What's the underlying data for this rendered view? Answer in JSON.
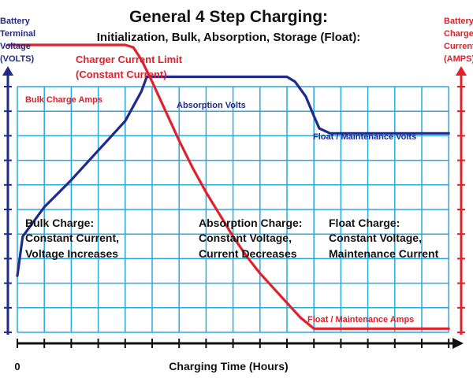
{
  "chart_data": {
    "type": "line",
    "title": "General 4 Step Charging:",
    "subtitle": "Initialization, Bulk, Absorption, Storage (Float):",
    "left_axis_label": [
      "Battery",
      "Terminal",
      "Voltage",
      "(VOLTS)"
    ],
    "right_axis_label": [
      "Battery",
      "Charge",
      "Current",
      "(AMPS)"
    ],
    "xlabel": "Charging Time (Hours)",
    "x_tick_label": "0",
    "grid": true,
    "colors": {
      "volts": "#1f2a8a",
      "amps": "#e0202a",
      "grid": "#28a8e0",
      "axis": "#111111"
    },
    "annotations": {
      "charger_limit": [
        "Charger Current Limit",
        "(Constant Current)"
      ],
      "bulk_amps": "Bulk Charge Amps",
      "absorption_volts": "Absorption Volts",
      "float_volts": "Float / Maintenance Volts",
      "float_amps": "Float / Maintenance Amps",
      "bulk_stage": [
        "Bulk Charge:",
        "Constant Current,",
        "Voltage Increases"
      ],
      "absorption_stage": [
        "Absorption Charge:",
        "Constant Voltage,",
        "Current Decreases"
      ],
      "float_stage": [
        "Float Charge:",
        "Constant Voltage,",
        "Maintenance Current"
      ]
    },
    "series": [
      {
        "name": "Absorption Volts",
        "axis": "left",
        "x": [
          0,
          0.2,
          0.6,
          1,
          2,
          3,
          4,
          4.6,
          4.8,
          5,
          7,
          10,
          10.3,
          10.7,
          11,
          11.2,
          11.6,
          12,
          16
        ],
        "y": [
          2.3,
          3.9,
          4.5,
          5.1,
          6.2,
          7.4,
          8.6,
          9.8,
          10.4,
          10.4,
          10.4,
          10.4,
          10.2,
          9.6,
          8.8,
          8.3,
          8.1,
          8.1,
          8.1
        ]
      },
      {
        "name": "Bulk Charge Amps",
        "axis": "right",
        "x": [
          -1,
          4,
          4.3,
          4.6,
          5,
          5.5,
          6,
          6.5,
          7,
          7.5,
          8,
          8.5,
          9,
          9.5,
          10,
          10.5,
          11,
          16
        ],
        "y": [
          11.7,
          11.7,
          11.6,
          11.1,
          10.2,
          9.0,
          7.8,
          6.7,
          5.7,
          4.8,
          3.9,
          3.1,
          2.4,
          1.8,
          1.2,
          0.6,
          0.15,
          0.15
        ]
      }
    ]
  }
}
